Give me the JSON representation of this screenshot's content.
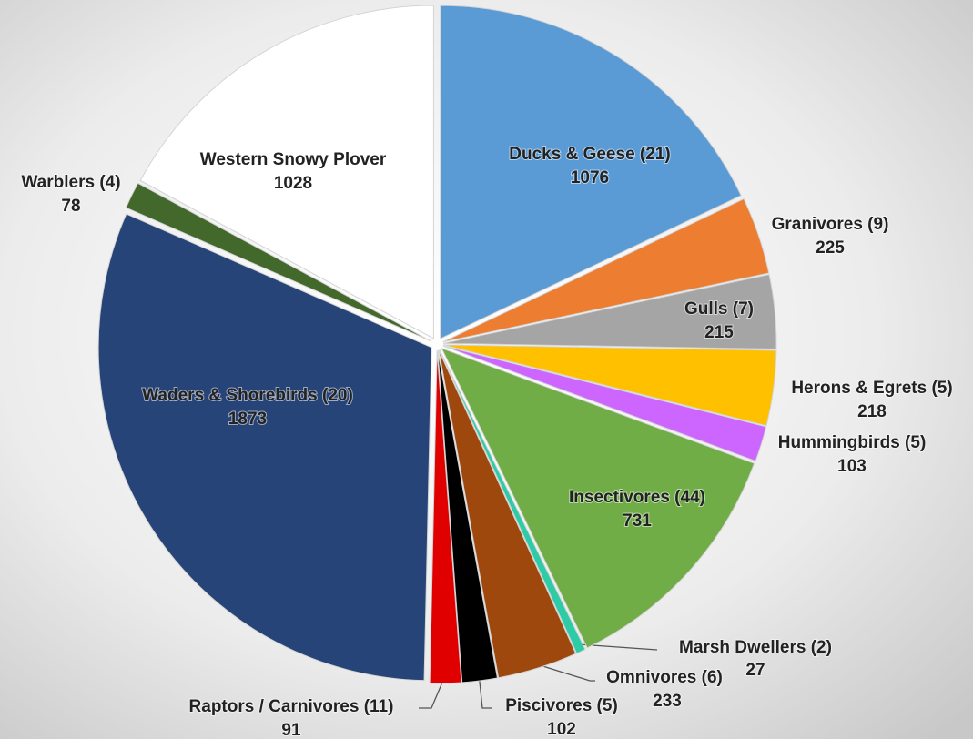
{
  "chart_data": {
    "type": "pie",
    "categories": [
      "Ducks & Geese (21)",
      "Granivores (9)",
      "Gulls (7)",
      "Herons & Egrets (5)",
      "Hummingbirds (5)",
      "Insectivores (44)",
      "Marsh Dwellers (2)",
      "Omnivores (6)",
      "Piscivores (5)",
      "Raptors / Carnivores (11)",
      "Waders & Shorebirds (20)",
      "Warblers (4)",
      "Western Snowy Plover"
    ],
    "values": [
      1076,
      225,
      215,
      218,
      103,
      731,
      27,
      233,
      102,
      91,
      1873,
      78,
      1028
    ],
    "colors": [
      "#5b9bd5",
      "#ed7d31",
      "#a5a5a5",
      "#ffc000",
      "#cc66ff",
      "#70ad47",
      "#2ecca6",
      "#9e480e",
      "#000000",
      "#e00000",
      "#264478",
      "#43682b",
      "#ffffff"
    ]
  }
}
